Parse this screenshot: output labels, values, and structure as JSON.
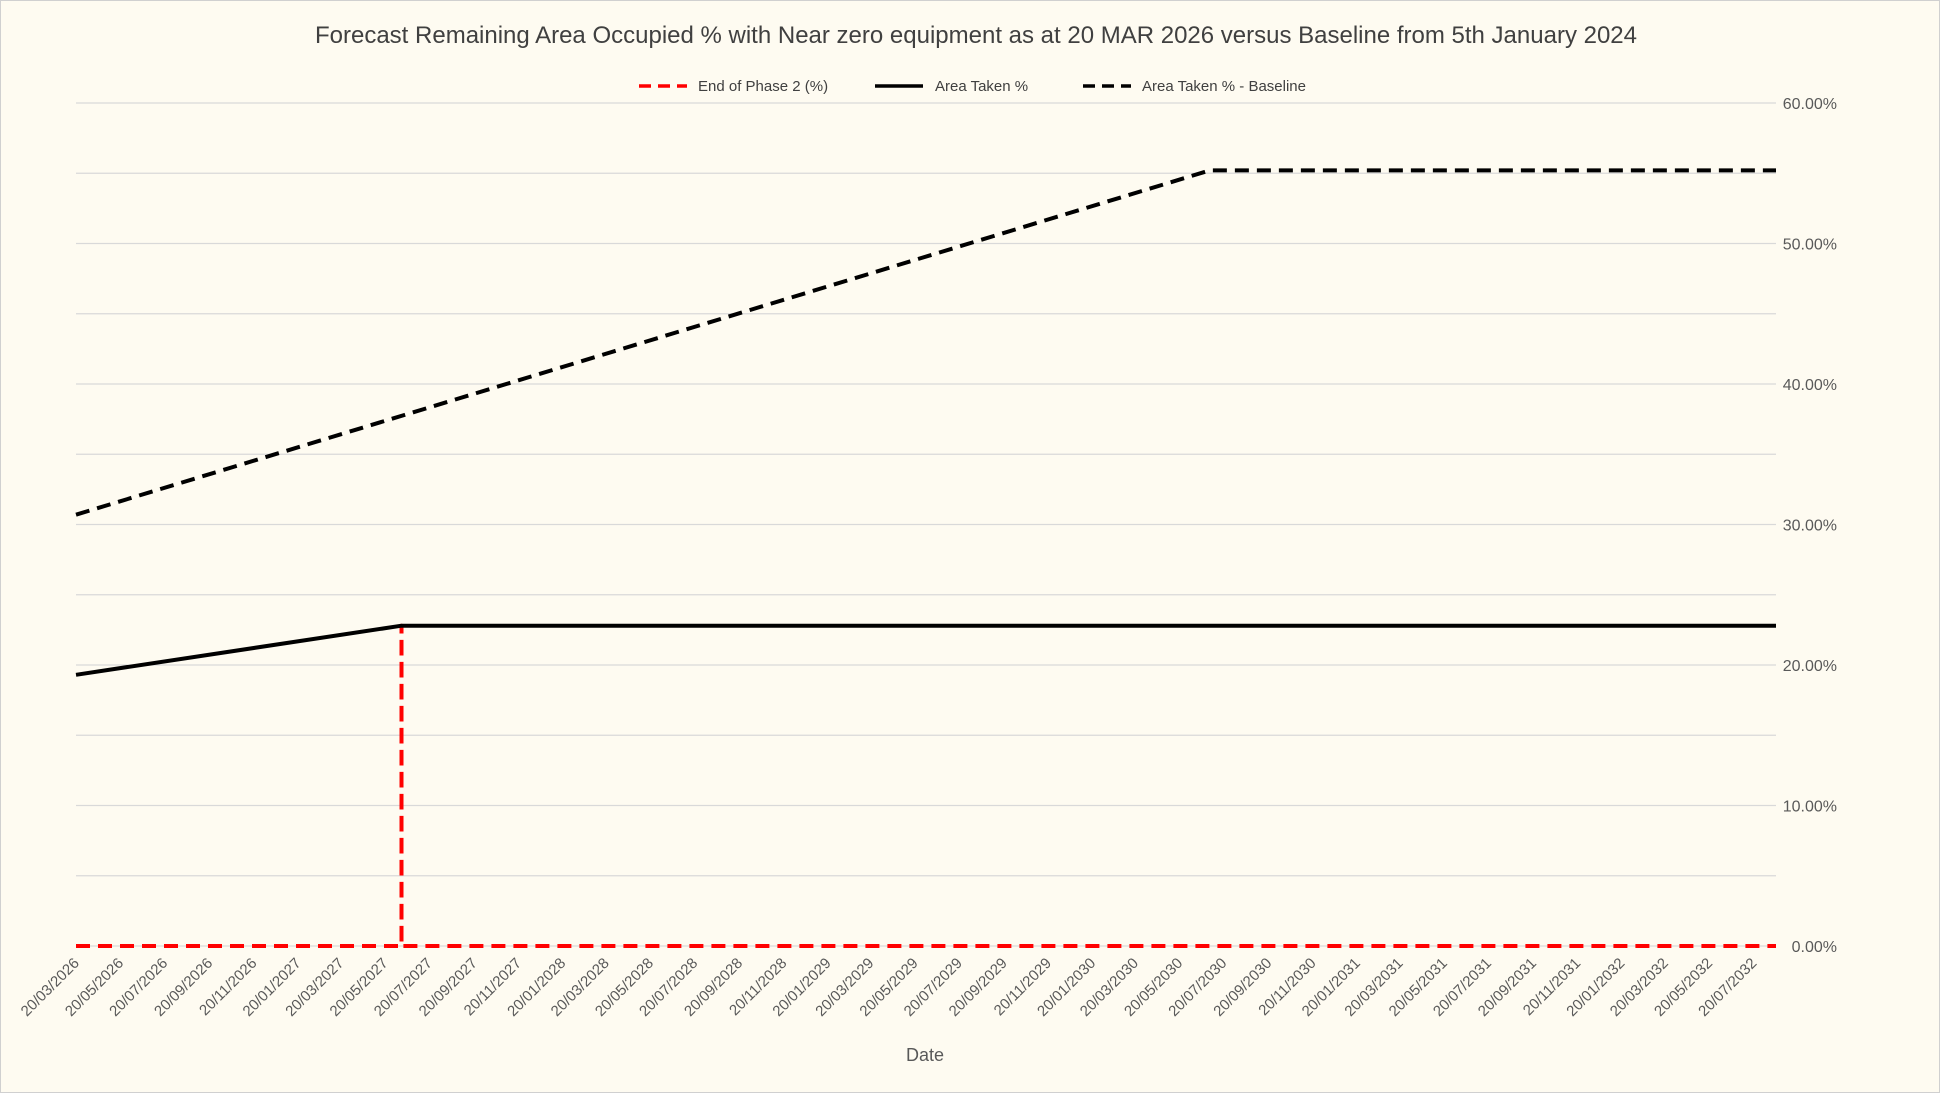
{
  "chart_data": {
    "type": "line",
    "title": "Forecast Remaining Area Occupied % with Near zero equipment as at 20 MAR 2026 versus Baseline from 5th January 2024",
    "xlabel": "Date",
    "ylabel": "",
    "ylim": [
      0,
      60
    ],
    "y_ticks": [
      "0.00%",
      "10.00%",
      "20.00%",
      "30.00%",
      "40.00%",
      "50.00%",
      "60.00%"
    ],
    "y_axis_position": "right",
    "grid": true,
    "legend_position": "top",
    "x_ticks": [
      "20/03/2026",
      "20/05/2026",
      "20/07/2026",
      "20/09/2026",
      "20/11/2026",
      "20/01/2027",
      "20/03/2027",
      "20/05/2027",
      "20/07/2027",
      "20/09/2027",
      "20/11/2027",
      "20/01/2028",
      "20/03/2028",
      "20/05/2028",
      "20/07/2028",
      "20/09/2028",
      "20/11/2028",
      "20/01/2029",
      "20/03/2029",
      "20/05/2029",
      "20/07/2029",
      "20/09/2029",
      "20/11/2029",
      "20/01/2030",
      "20/03/2030",
      "20/05/2030",
      "20/07/2030",
      "20/09/2030",
      "20/11/2030",
      "20/01/2031",
      "20/03/2031",
      "20/05/2031",
      "20/07/2031",
      "20/09/2031",
      "20/11/2031",
      "20/01/2032",
      "20/03/2032",
      "20/05/2032",
      "20/07/2032"
    ],
    "x_range": [
      "20/03/2026",
      "20/08/2032"
    ],
    "series": [
      {
        "name": "End of Phase 2 (%)",
        "color": "#ff0000",
        "style": "dashed",
        "points": [
          {
            "x": "20/03/2026",
            "y": 0
          },
          {
            "x": "12/06/2027",
            "y": 0
          },
          {
            "x": "12/06/2027",
            "y": 22.8
          },
          {
            "x": "12/06/2027",
            "y": 0
          },
          {
            "x": "20/08/2032",
            "y": 0
          }
        ]
      },
      {
        "name": "Area Taken %",
        "color": "#000000",
        "style": "solid",
        "points": [
          {
            "x": "20/03/2026",
            "y": 19.3
          },
          {
            "x": "12/06/2027",
            "y": 22.8
          },
          {
            "x": "20/08/2032",
            "y": 22.8
          }
        ]
      },
      {
        "name": "Area Taken % - Baseline",
        "color": "#000000",
        "style": "dashed",
        "points": [
          {
            "x": "20/03/2026",
            "y": 30.7
          },
          {
            "x": "01/07/2030",
            "y": 55.2
          },
          {
            "x": "20/08/2032",
            "y": 55.2
          }
        ]
      }
    ]
  }
}
